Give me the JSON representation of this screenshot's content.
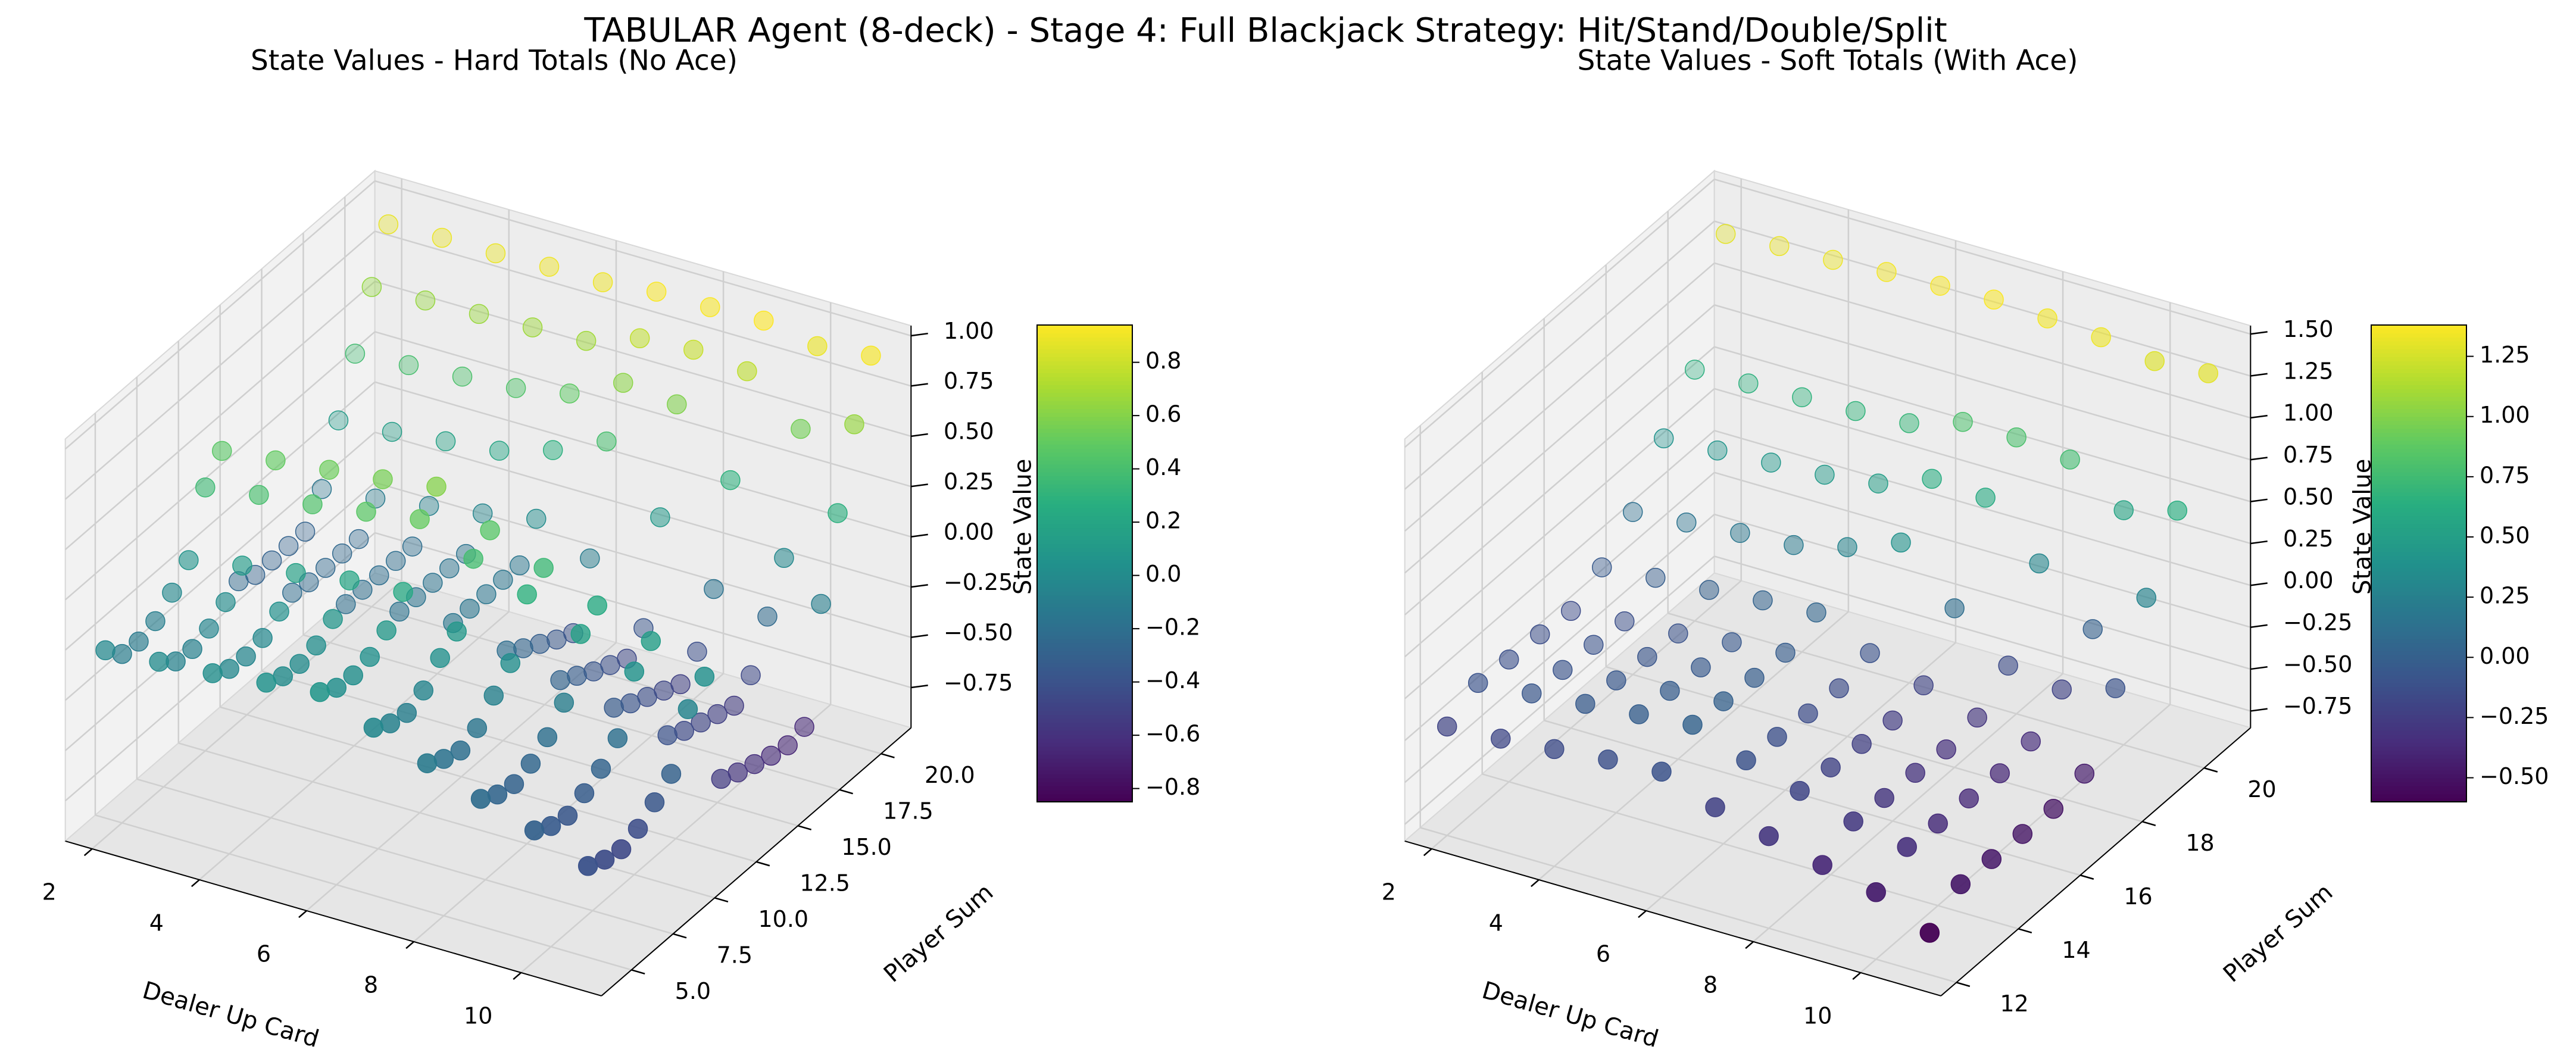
{
  "title": "TABULAR Agent (8-deck) - Stage 4: Full Blackjack Strategy: Hit/Stand/Double/Split",
  "chart_data": [
    {
      "type": "scatter3d",
      "title": "State Values - Hard Totals (No Ace)",
      "xlabel": "Dealer Up Card",
      "ylabel": "Player Sum",
      "zlabel": "State Value",
      "colormap": "viridis",
      "clim": [
        -0.85,
        0.94
      ],
      "x": [
        2,
        3,
        4,
        5,
        6,
        7,
        8,
        9,
        10,
        11
      ],
      "y": [
        4,
        5,
        6,
        7,
        8,
        9,
        10,
        11,
        12,
        13,
        14,
        15,
        16,
        17,
        18,
        19,
        20,
        21
      ],
      "values": [
        [
          -0.02,
          0.0,
          0.02,
          0.05,
          0.08,
          -0.02,
          -0.12,
          -0.22,
          -0.3,
          -0.4
        ],
        [
          -0.11,
          -0.07,
          -0.03,
          0.01,
          0.03,
          -0.07,
          -0.17,
          -0.27,
          -0.35,
          -0.44
        ],
        [
          -0.12,
          -0.08,
          -0.04,
          0.0,
          0.02,
          -0.09,
          -0.2,
          -0.29,
          -0.37,
          -0.46
        ],
        [
          -0.09,
          -0.05,
          -0.02,
          0.02,
          0.04,
          -0.05,
          -0.16,
          -0.26,
          -0.33,
          -0.43
        ],
        [
          -0.02,
          0.01,
          0.04,
          0.08,
          0.1,
          0.04,
          -0.07,
          -0.2,
          -0.28,
          -0.37
        ],
        [
          0.07,
          0.12,
          0.16,
          0.2,
          0.22,
          0.1,
          0.02,
          -0.1,
          -0.2,
          -0.3
        ],
        [
          0.36,
          0.4,
          0.43,
          0.47,
          0.51,
          0.39,
          0.29,
          0.17,
          0.06,
          -0.05
        ],
        [
          0.47,
          0.5,
          0.53,
          0.56,
          0.6,
          0.46,
          0.35,
          0.24,
          0.14,
          0.04
        ],
        [
          -0.25,
          -0.23,
          -0.21,
          -0.17,
          -0.15,
          -0.21,
          -0.28,
          -0.34,
          -0.4,
          -0.54
        ],
        [
          -0.29,
          -0.25,
          -0.21,
          -0.17,
          -0.15,
          -0.27,
          -0.33,
          -0.39,
          -0.45,
          -0.58
        ],
        [
          -0.29,
          -0.25,
          -0.21,
          -0.17,
          -0.15,
          -0.32,
          -0.38,
          -0.43,
          -0.48,
          -0.61
        ],
        [
          -0.29,
          -0.25,
          -0.21,
          -0.17,
          -0.15,
          -0.37,
          -0.42,
          -0.47,
          -0.51,
          -0.64
        ],
        [
          -0.29,
          -0.25,
          -0.21,
          -0.17,
          -0.15,
          -0.41,
          -0.46,
          -0.51,
          -0.54,
          -0.66
        ],
        [
          -0.15,
          -0.12,
          -0.08,
          -0.04,
          0.01,
          -0.11,
          -0.38,
          -0.42,
          -0.46,
          -0.64
        ],
        [
          0.12,
          0.14,
          0.17,
          0.2,
          0.28,
          0.4,
          0.1,
          -0.18,
          -0.24,
          -0.1
        ],
        [
          0.38,
          0.4,
          0.42,
          0.44,
          0.49,
          0.62,
          0.59,
          0.29,
          -0.02,
          0.28
        ],
        [
          0.64,
          0.65,
          0.66,
          0.67,
          0.68,
          0.77,
          0.79,
          0.76,
          0.55,
          0.65
        ],
        [
          0.88,
          0.89,
          0.89,
          0.9,
          0.9,
          0.93,
          0.93,
          0.94,
          0.89,
          0.92
        ]
      ],
      "xlim": [
        1.5,
        11.5
      ],
      "xticks": [
        2,
        4,
        6,
        8,
        10
      ],
      "ylim": [
        3.2,
        21.8
      ],
      "yticks": [
        {
          "value": 5,
          "label": "5.0"
        },
        {
          "value": 7.5,
          "label": "7.5"
        },
        {
          "value": 10,
          "label": "10.0"
        },
        {
          "value": 12.5,
          "label": "12.5"
        },
        {
          "value": 15,
          "label": "15.0"
        },
        {
          "value": 17.5,
          "label": "17.5"
        },
        {
          "value": 20,
          "label": "20.0"
        }
      ],
      "zlim": [
        -0.95,
        1.05
      ],
      "zticks": [
        {
          "value": -0.75,
          "label": "−0.75"
        },
        {
          "value": -0.5,
          "label": "−0.50"
        },
        {
          "value": -0.25,
          "label": "−0.25"
        },
        {
          "value": 0,
          "label": "0.00"
        },
        {
          "value": 0.25,
          "label": "0.25"
        },
        {
          "value": 0.5,
          "label": "0.50"
        },
        {
          "value": 0.75,
          "label": "0.75"
        },
        {
          "value": 1,
          "label": "1.00"
        }
      ],
      "cticks": [
        {
          "value": -0.8,
          "label": "−0.8"
        },
        {
          "value": -0.6,
          "label": "−0.6"
        },
        {
          "value": -0.4,
          "label": "−0.4"
        },
        {
          "value": -0.2,
          "label": "−0.2"
        },
        {
          "value": 0,
          "label": "0.0"
        },
        {
          "value": 0.2,
          "label": "0.2"
        },
        {
          "value": 0.4,
          "label": "0.4"
        },
        {
          "value": 0.6,
          "label": "0.6"
        },
        {
          "value": 0.8,
          "label": "0.8"
        }
      ]
    },
    {
      "type": "scatter3d",
      "title": "State Values - Soft Totals (With Ace)",
      "xlabel": "Dealer Up Card",
      "ylabel": "Player Sum",
      "zlabel": "State Value",
      "colormap": "viridis",
      "clim": [
        -0.6,
        1.38
      ],
      "x": [
        2,
        3,
        4,
        5,
        6,
        7,
        8,
        9,
        10,
        11
      ],
      "y": [
        12,
        13,
        14,
        15,
        16,
        17,
        18,
        19,
        20,
        21
      ],
      "values": [
        [
          -0.2,
          -0.18,
          -0.15,
          -0.12,
          -0.1,
          -0.22,
          -0.3,
          -0.38,
          -0.45,
          -0.6
        ],
        [
          -0.1,
          -0.07,
          -0.04,
          -0.01,
          0.02,
          -0.1,
          -0.19,
          -0.28,
          -0.34,
          -0.47
        ],
        [
          -0.12,
          -0.09,
          -0.06,
          -0.03,
          0.0,
          -0.12,
          -0.21,
          -0.3,
          -0.36,
          -0.48
        ],
        [
          -0.13,
          -0.1,
          -0.08,
          -0.05,
          -0.02,
          -0.14,
          -0.23,
          -0.31,
          -0.37,
          -0.49
        ],
        [
          -0.15,
          -0.12,
          -0.1,
          -0.06,
          -0.03,
          -0.15,
          -0.25,
          -0.33,
          -0.38,
          -0.5
        ],
        [
          -0.05,
          -0.02,
          0.0,
          0.03,
          0.05,
          -0.1,
          -0.2,
          -0.3,
          -0.35,
          -0.45
        ],
        [
          0.12,
          0.15,
          0.18,
          0.2,
          0.28,
          0.4,
          0.1,
          -0.15,
          -0.2,
          -0.1
        ],
        [
          0.4,
          0.42,
          0.44,
          0.46,
          0.5,
          0.62,
          0.6,
          0.3,
          0.0,
          0.28
        ],
        [
          0.65,
          0.66,
          0.67,
          0.68,
          0.7,
          0.8,
          0.8,
          0.76,
          0.55,
          0.64
        ],
        [
          1.3,
          1.32,
          1.33,
          1.35,
          1.36,
          1.37,
          1.35,
          1.33,
          1.28,
          1.3
        ]
      ],
      "xlim": [
        1.5,
        11.5
      ],
      "xticks": [
        2,
        4,
        6,
        8,
        10
      ],
      "ylim": [
        11.5,
        21.5
      ],
      "yticks": [
        12,
        14,
        16,
        18,
        20
      ],
      "zlim": [
        -0.85,
        1.55
      ],
      "zticks": [
        {
          "value": -0.75,
          "label": "−0.75"
        },
        {
          "value": -0.5,
          "label": "−0.50"
        },
        {
          "value": -0.25,
          "label": "−0.25"
        },
        {
          "value": 0,
          "label": "0.00"
        },
        {
          "value": 0.25,
          "label": "0.25"
        },
        {
          "value": 0.5,
          "label": "0.50"
        },
        {
          "value": 0.75,
          "label": "0.75"
        },
        {
          "value": 1,
          "label": "1.00"
        },
        {
          "value": 1.25,
          "label": "1.25"
        },
        {
          "value": 1.5,
          "label": "1.50"
        }
      ],
      "cticks": [
        {
          "value": -0.5,
          "label": "−0.50"
        },
        {
          "value": -0.25,
          "label": "−0.25"
        },
        {
          "value": 0,
          "label": "0.00"
        },
        {
          "value": 0.25,
          "label": "0.25"
        },
        {
          "value": 0.5,
          "label": "0.50"
        },
        {
          "value": 0.75,
          "label": "0.75"
        },
        {
          "value": 1,
          "label": "1.00"
        },
        {
          "value": 1.25,
          "label": "1.25"
        }
      ]
    }
  ]
}
